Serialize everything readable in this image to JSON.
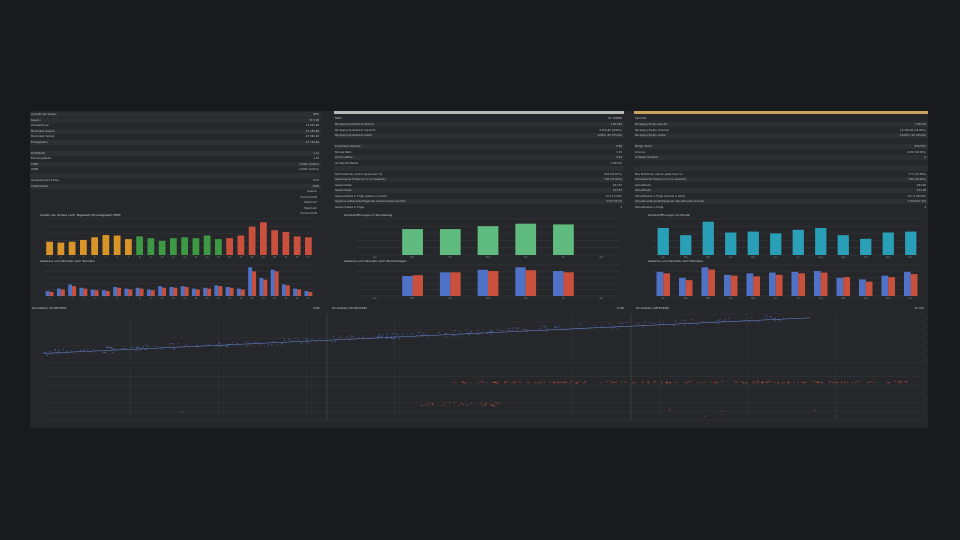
{
  "header": {
    "left_label": "Qualität des Setups",
    "left_value": "80%",
    "mid_label": "Netto",
    "mid_value": "41 748860",
    "right_label": "Symbole"
  },
  "stats_left": [
    {
      "label": "Gewinn",
      "value": "37 0 90"
    },
    {
      "label": "Transaktionen",
      "value": "12 261,60"
    },
    {
      "label": "Maximaler Gewinn",
      "value": "21 183,60"
    },
    {
      "label": "Maximaler Verlust",
      "value": "-23 365,00"
    },
    {
      "label": "Ertragsfaktor",
      "value": "27 728,60"
    },
    {
      "label": "",
      "value": ""
    },
    {
      "label": "Profitfaktor",
      "value": "1,11"
    },
    {
      "label": "Erholungsfaktor",
      "value": "1,39"
    },
    {
      "label": "AHPR",
      "value": "1,0064 (0,64%)"
    },
    {
      "label": "GHPR",
      "value": "1,0061 (0,61%)"
    },
    {
      "label": "",
      "value": ""
    },
    {
      "label": "Gesamtanzahl Trades",
      "value": "1574"
    },
    {
      "label": "Anzahl Deals",
      "value": "3094"
    }
  ],
  "stats_left_sub": [
    {
      "label": "Gewinn",
      "value": ""
    },
    {
      "label": "Durchschnitt",
      "value": ""
    },
    {
      "label": "Maximum",
      "value": ""
    },
    {
      "label": "Maximum",
      "value": ""
    },
    {
      "label": "Durchschnitt",
      "value": ""
    }
  ],
  "stats_mid": [
    {
      "label": "Rückgang Kontostand absolut",
      "value": "4 603,60"
    },
    {
      "label": "Rückgang Kontostand maximal",
      "value": "9 874,60 (9,86%)"
    },
    {
      "label": "Rückgang Kontostand relativ",
      "value": "9,86% (10 075,00)"
    },
    {
      "label": "",
      "value": ""
    },
    {
      "label": "Erwartetes Payback",
      "value": "8,60"
    },
    {
      "label": "Sharpe Ratio",
      "value": "3,15"
    },
    {
      "label": "LR Korrelation",
      "value": "0,81"
    },
    {
      "label": "LR Standardfehler",
      "value": "4 025,55"
    },
    {
      "label": "",
      "value": ""
    },
    {
      "label": "Sell Positionen (davon gewonnen %)",
      "value": "801 (53,67%)"
    },
    {
      "label": "Gewinnende Trades (in % von Gesamt)",
      "value": "783 (51,60%)"
    },
    {
      "label": "Gewinntrade",
      "value": "817,52"
    },
    {
      "label": "Gewinntrade",
      "value": "103,87"
    },
    {
      "label": "Gewinntrades in Folge (Gewinn in Geld)",
      "value": "9 (4 127,80)"
    },
    {
      "label": "Gewinne aufeinanderfolgender Gewinntrades (Anzahl)",
      "value": "4 337,60 (9)"
    },
    {
      "label": "Gewinntrades in Folge",
      "value": "3"
    }
  ],
  "stats_right": [
    {
      "label": "Rückgang Equity absolut",
      "value": "7 360,00"
    },
    {
      "label": "Rückgang Equity maximal",
      "value": "16 185,60 (16,85%)"
    },
    {
      "label": "Rückgang Equity relativ",
      "value": "16,82% (16 185,60)"
    },
    {
      "label": "",
      "value": ""
    },
    {
      "label": "Margin Stand",
      "value": "956,50%"
    },
    {
      "label": "Z-Score",
      "value": "-6,00 (99,99%)"
    },
    {
      "label": "OnTester Resultat",
      "value": "0"
    },
    {
      "label": "",
      "value": ""
    },
    {
      "label": "",
      "value": ""
    },
    {
      "label": "Buy Positionen (davon gewonnen %)",
      "value": "777 (47,38%)"
    },
    {
      "label": "Verlustreiche Trades (in % von Gesamt)",
      "value": "789 (50,40%)"
    },
    {
      "label": "Verlusttrade",
      "value": "-843,00"
    },
    {
      "label": "Verlusttrade",
      "value": "-101,00"
    },
    {
      "label": "Verlusttrades in Folge (Verlust in Geld)",
      "value": "10 (-3 200,60)"
    },
    {
      "label": "Verluste aufeinanderfolgender Verlusttrades (Anzahl)",
      "value": "-3 650,00 (10)"
    },
    {
      "label": "Verlusttrades in Folge",
      "value": "3"
    }
  ],
  "panels": {
    "hours_orders_title": "Anzahl der Orders nach Tageszeit (Einstiegszeit) MEM",
    "weekday_orders_title": "Ordereröffnungen in Wochentag",
    "month_orders_title": "Ordereröffnungen im Monat",
    "hours_pl_title": "Gewinne und Verluste nach Stunden",
    "weekday_pl_title": "Gewinne und Verluste nach Wochentagen",
    "month_pl_title": "Gewinne und Verluste nach Monaten",
    "scatter1_title": "Korrelation (Profit,MFE)",
    "scatter1_value": "0,85",
    "scatter2_title": "Korrelation (Profit,MAE)",
    "scatter2_value": "0,58",
    "scatter3_title": "Korrelation (MFE,MAE)",
    "scatter3_value": "-0,733"
  },
  "colors": {
    "accent_bar": "#c7a25a",
    "orange": "#d99528",
    "green": "#3c9a44",
    "red": "#c9503c",
    "teal": "#2aa0b8",
    "weekday_green": "#5fbb7e",
    "blue": "#4f72c7"
  },
  "chart_data": [
    {
      "type": "bar",
      "categories": [
        "0",
        "1",
        "2",
        "3",
        "4",
        "5",
        "6",
        "7",
        "8",
        "9",
        "10",
        "11",
        "12",
        "13",
        "14",
        "15",
        "16",
        "17",
        "18",
        "19",
        "20",
        "21",
        "22",
        "23"
      ],
      "values": [
        30,
        28,
        30,
        34,
        40,
        45,
        44,
        36,
        42,
        38,
        32,
        38,
        40,
        38,
        44,
        36,
        38,
        44,
        64,
        74,
        56,
        52,
        42,
        40
      ]
    },
    {
      "type": "bar",
      "categories": [
        "Sun",
        "Mon",
        "Tue",
        "Wed",
        "Thu",
        "Fri",
        "Sat"
      ],
      "values": [
        0,
        288,
        288,
        320,
        348,
        340,
        0
      ],
      "ylim": [
        0,
        400
      ]
    },
    {
      "type": "bar",
      "categories": [
        "Jan",
        "Feb",
        "Mar",
        "Apr",
        "May",
        "Jun",
        "Jul",
        "Aug",
        "Sep",
        "Oct",
        "Nov",
        "Dec"
      ],
      "values": [
        150,
        110,
        185,
        125,
        130,
        120,
        140,
        150,
        110,
        90,
        125,
        130
      ],
      "ylim": [
        0,
        200
      ]
    },
    {
      "type": "bar",
      "categories": [
        "0",
        "1",
        "2",
        "3",
        "4",
        "5",
        "6",
        "7",
        "8",
        "9",
        "10",
        "11",
        "12",
        "13",
        "14",
        "15",
        "16",
        "17",
        "18",
        "19",
        "20",
        "21",
        "22",
        "23"
      ],
      "series": [
        {
          "values": [
            600,
            900,
            1400,
            1000,
            800,
            700,
            1100,
            900,
            1000,
            800,
            1200,
            1100,
            1200,
            900,
            1000,
            1300,
            1100,
            900,
            3500,
            2200,
            3200,
            1400,
            900,
            600
          ]
        },
        {
          "values": [
            500,
            800,
            1200,
            900,
            700,
            600,
            1000,
            800,
            900,
            700,
            1000,
            1000,
            1100,
            800,
            900,
            1200,
            1000,
            800,
            3000,
            2000,
            3000,
            1300,
            800,
            500
          ]
        }
      ]
    },
    {
      "type": "bar",
      "categories": [
        "Sun",
        "Mon",
        "Tue",
        "Wed",
        "Thu",
        "Fri",
        "Sat"
      ],
      "series": [
        {
          "values": [
            0,
            4800,
            5700,
            6300,
            6900,
            6000,
            0
          ]
        },
        {
          "values": [
            0,
            5000,
            5700,
            6000,
            6200,
            5700,
            0
          ]
        }
      ]
    },
    {
      "type": "bar",
      "categories": [
        "Jan",
        "Feb",
        "Mar",
        "Apr",
        "May",
        "Jun",
        "Jul",
        "Aug",
        "Sep",
        "Oct",
        "Nov",
        "Dec"
      ],
      "series": [
        {
          "values": [
            3200,
            2400,
            3800,
            2800,
            3000,
            3100,
            3200,
            3300,
            2400,
            2200,
            2700,
            3200
          ]
        },
        {
          "values": [
            3000,
            2100,
            3500,
            2700,
            2600,
            2800,
            3000,
            3100,
            2500,
            1900,
            2500,
            2900
          ]
        }
      ]
    }
  ]
}
